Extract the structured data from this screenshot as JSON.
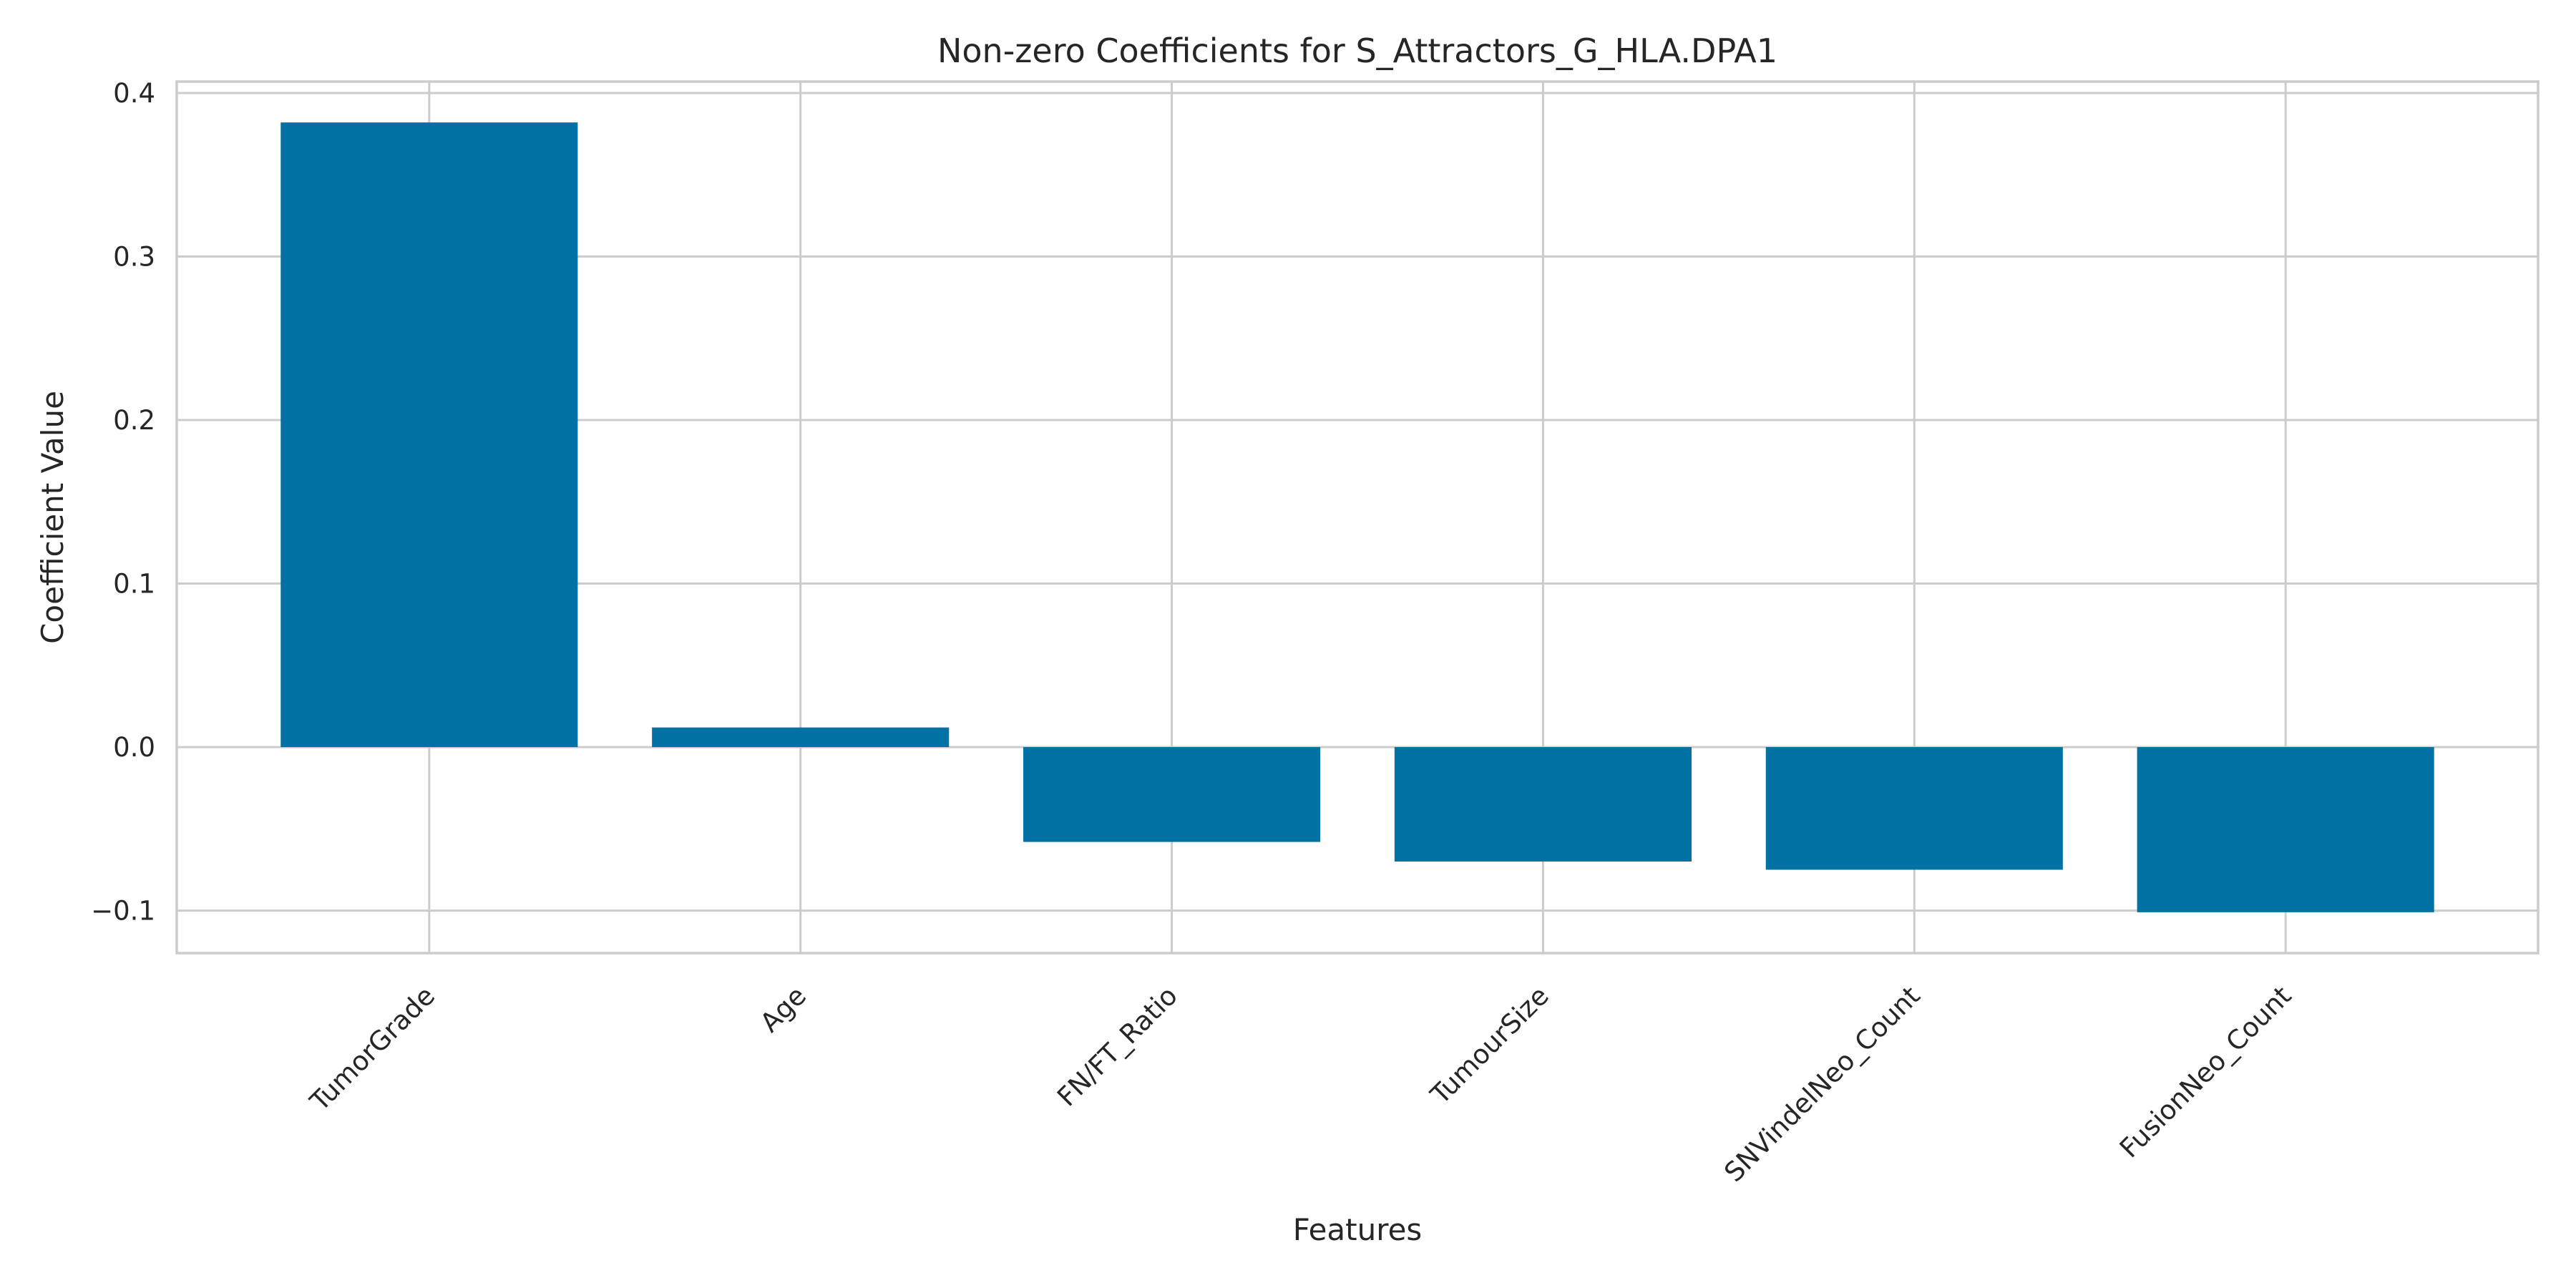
{
  "chart_data": {
    "type": "bar",
    "title": "Non-zero Coefficients for S_Attractors_G_HLA.DPA1",
    "xlabel": "Features",
    "ylabel": "Coefficient Value",
    "categories": [
      "TumorGrade",
      "Age",
      "FN/FT_Ratio",
      "TumourSize",
      "SNVindelNeo_Count",
      "FusionNeo_Count"
    ],
    "values": [
      0.382,
      0.012,
      -0.058,
      -0.07,
      -0.075,
      -0.101
    ],
    "ylim": [
      -0.126,
      0.407
    ],
    "yticks": [
      -0.1,
      0.0,
      0.1,
      0.2,
      0.3,
      0.4
    ],
    "ytick_labels": [
      "−0.1",
      "0.0",
      "0.1",
      "0.2",
      "0.3",
      "0.4"
    ],
    "grid": true,
    "legend": "none",
    "bar_color": "#0271a4"
  }
}
